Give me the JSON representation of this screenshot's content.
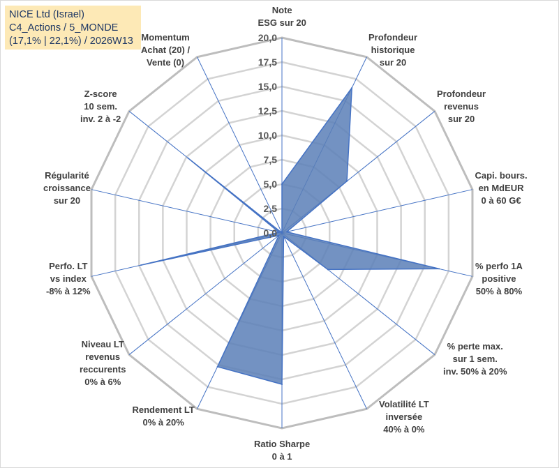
{
  "header": {
    "line1": "NICE Ltd (Israel)",
    "line2": "C4_Actions / 5_MONDE",
    "line3": "(17,1% | 22,1%) / 2026W13"
  },
  "colors": {
    "fill": "#5b7fb7",
    "stroke": "#4472c4",
    "grid": "#c8c8c8",
    "info_bg": "#fde9b6"
  },
  "chart_data": {
    "type": "radar",
    "rmin": 0,
    "rmax": 20,
    "step": 2.5,
    "tick_labels": [
      "0,0",
      "2,5",
      "5,0",
      "7,5",
      "10,0",
      "12,5",
      "15,0",
      "17,5",
      "20,0"
    ],
    "axes": [
      "Note\nESG sur 20",
      "Profondeur\nhistorique\nsur 20",
      "Profondeur\nrevenus\nsur 20",
      "Capi. bours.\nen MdEUR\n0 à 60 G€",
      "% perfo 1A\npositive\n50% à 80%",
      "% perte max.\nsur 1 sem.\ninv. 50% à 20%",
      "Volatilité LT\ninversée\n40% à 0%",
      "Ratio Sharpe\n0 à 1",
      "Rendement LT\n0% à 20%",
      "Niveau LT\nrevenus\nreccurents\n0% à 6%",
      "Perfo. LT\nvs index\n-8% à 12%",
      "Régularité\ncroissance\nsur 20",
      "Z-score\n10 sem.\ninv. 2 à -2",
      "Momentum\nAchat (20) /\nVente (0)"
    ],
    "series": [
      {
        "name": "NICE Ltd (Israel)",
        "values": [
          5.0,
          16.5,
          8.5,
          0.5,
          16.5,
          6.0,
          0.4,
          15.5,
          15.2,
          0.4,
          14.8,
          0.3,
          12.3,
          0.0
        ]
      }
    ]
  }
}
